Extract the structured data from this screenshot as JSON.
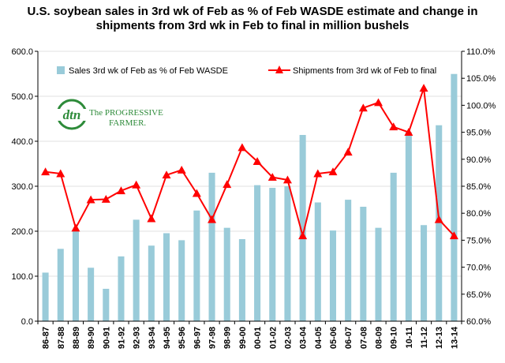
{
  "title_lines": [
    "U.S. soybean sales in 3rd wk of Feb as % of Feb WASDE estimate and change in",
    "shipments from 3rd wk in Feb to final in million bushels"
  ],
  "logo": {
    "mark_text": "dtn",
    "line1": "The PROGRESSIVE",
    "line2": "FARMER."
  },
  "colors": {
    "bar": "#99cbd9",
    "line": "#ff0000",
    "marker": "#ff0000",
    "grid": "#e0e0e0",
    "axis": "#000000",
    "logo_green": "#2e8b3a"
  },
  "chart_data": {
    "type": "bar",
    "categories": [
      "86-87",
      "87-88",
      "88-89",
      "89-90",
      "90-91",
      "91-92",
      "92-93",
      "93-94",
      "94-95",
      "95-96",
      "96-97",
      "97-98",
      "98-99",
      "99-00",
      "00-01",
      "01-02",
      "02-03",
      "03-04",
      "04-05",
      "05-06",
      "06-07",
      "07-08",
      "08-09",
      "09-10",
      "10-11",
      "11-12",
      "12-13",
      "13-14"
    ],
    "y_left": {
      "min": 0,
      "max": 600,
      "step": 100,
      "tick_labels": [
        "0.0",
        "100.0",
        "200.0",
        "300.0",
        "400.0",
        "500.0",
        "600.0"
      ]
    },
    "y_right": {
      "min": 60,
      "max": 110,
      "step": 5,
      "tick_labels": [
        "60.0%",
        "65.0%",
        "70.0%",
        "75.0%",
        "80.0%",
        "85.0%",
        "90.0%",
        "95.0%",
        "100.0%",
        "105.0%",
        "110.0%"
      ]
    },
    "series": [
      {
        "name": "Sales 3rd wk of Feb as % of Feb WASDE",
        "type": "bar",
        "axis": "right",
        "values": [
          69.0,
          73.4,
          77.0,
          69.9,
          66.0,
          72.0,
          78.8,
          74.0,
          76.3,
          75.0,
          80.5,
          87.5,
          77.3,
          75.2,
          85.2,
          84.7,
          85.0,
          94.5,
          82.0,
          76.8,
          82.5,
          81.2,
          77.3,
          87.5,
          95.0,
          77.8,
          96.3,
          105.8
        ]
      },
      {
        "name": "Shipments from 3rd wk of Feb to final",
        "type": "line",
        "axis": "left",
        "values": [
          332,
          328,
          207,
          270,
          271,
          290,
          303,
          228,
          325,
          336,
          284,
          226,
          304,
          386,
          355,
          320,
          314,
          190,
          328,
          332,
          376,
          474,
          486,
          432,
          420,
          518,
          226,
          190
        ]
      }
    ],
    "legend_position": "top",
    "grid": true
  }
}
